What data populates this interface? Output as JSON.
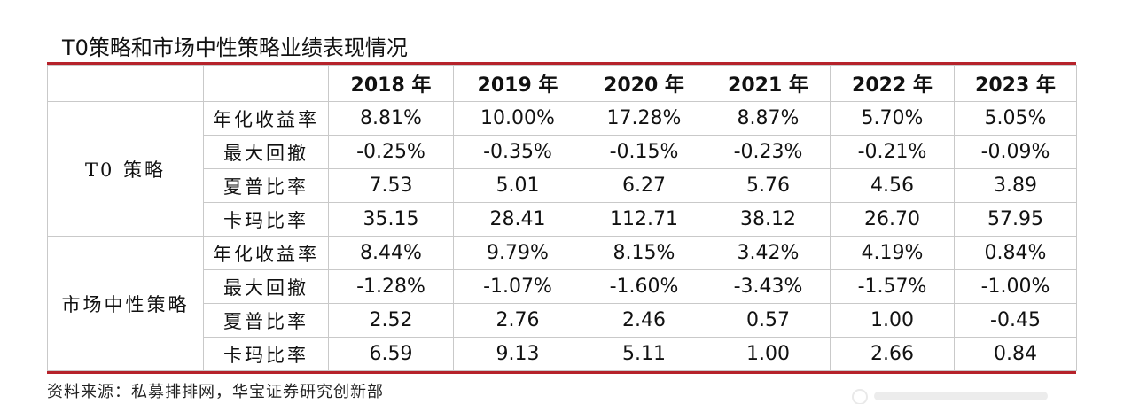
{
  "title": "T0策略和市场中性策略业绩表现情况",
  "years": [
    "2018 年",
    "2019 年",
    "2020 年",
    "2021 年",
    "2022 年",
    "2023 年"
  ],
  "groups": [
    {
      "name": "T0 策略",
      "rows": [
        {
          "metric": "年化收益率",
          "values": [
            "8.81%",
            "10.00%",
            "17.28%",
            "8.87%",
            "5.70%",
            "5.05%"
          ]
        },
        {
          "metric": "最大回撤",
          "values": [
            "-0.25%",
            "-0.35%",
            "-0.15%",
            "-0.23%",
            "-0.21%",
            "-0.09%"
          ]
        },
        {
          "metric": "夏普比率",
          "values": [
            "7.53",
            "5.01",
            "6.27",
            "5.76",
            "4.56",
            "3.89"
          ]
        },
        {
          "metric": "卡玛比率",
          "values": [
            "35.15",
            "28.41",
            "112.71",
            "38.12",
            "26.70",
            "57.95"
          ]
        }
      ]
    },
    {
      "name": "市场中性策略",
      "rows": [
        {
          "metric": "年化收益率",
          "values": [
            "8.44%",
            "9.79%",
            "8.15%",
            "3.42%",
            "4.19%",
            "0.84%"
          ]
        },
        {
          "metric": "最大回撤",
          "values": [
            "-1.28%",
            "-1.07%",
            "-1.60%",
            "-3.43%",
            "-1.57%",
            "-1.00%"
          ]
        },
        {
          "metric": "夏普比率",
          "values": [
            "2.52",
            "2.76",
            "2.46",
            "0.57",
            "1.00",
            "-0.45"
          ]
        },
        {
          "metric": "卡玛比率",
          "values": [
            "6.59",
            "9.13",
            "5.11",
            "1.00",
            "2.66",
            "0.84"
          ]
        }
      ]
    }
  ],
  "source": "资料来源：私募排排网，华宝证券研究创新部",
  "colors": {
    "rule": "#b6222a",
    "grid": "#c9c9c9"
  }
}
